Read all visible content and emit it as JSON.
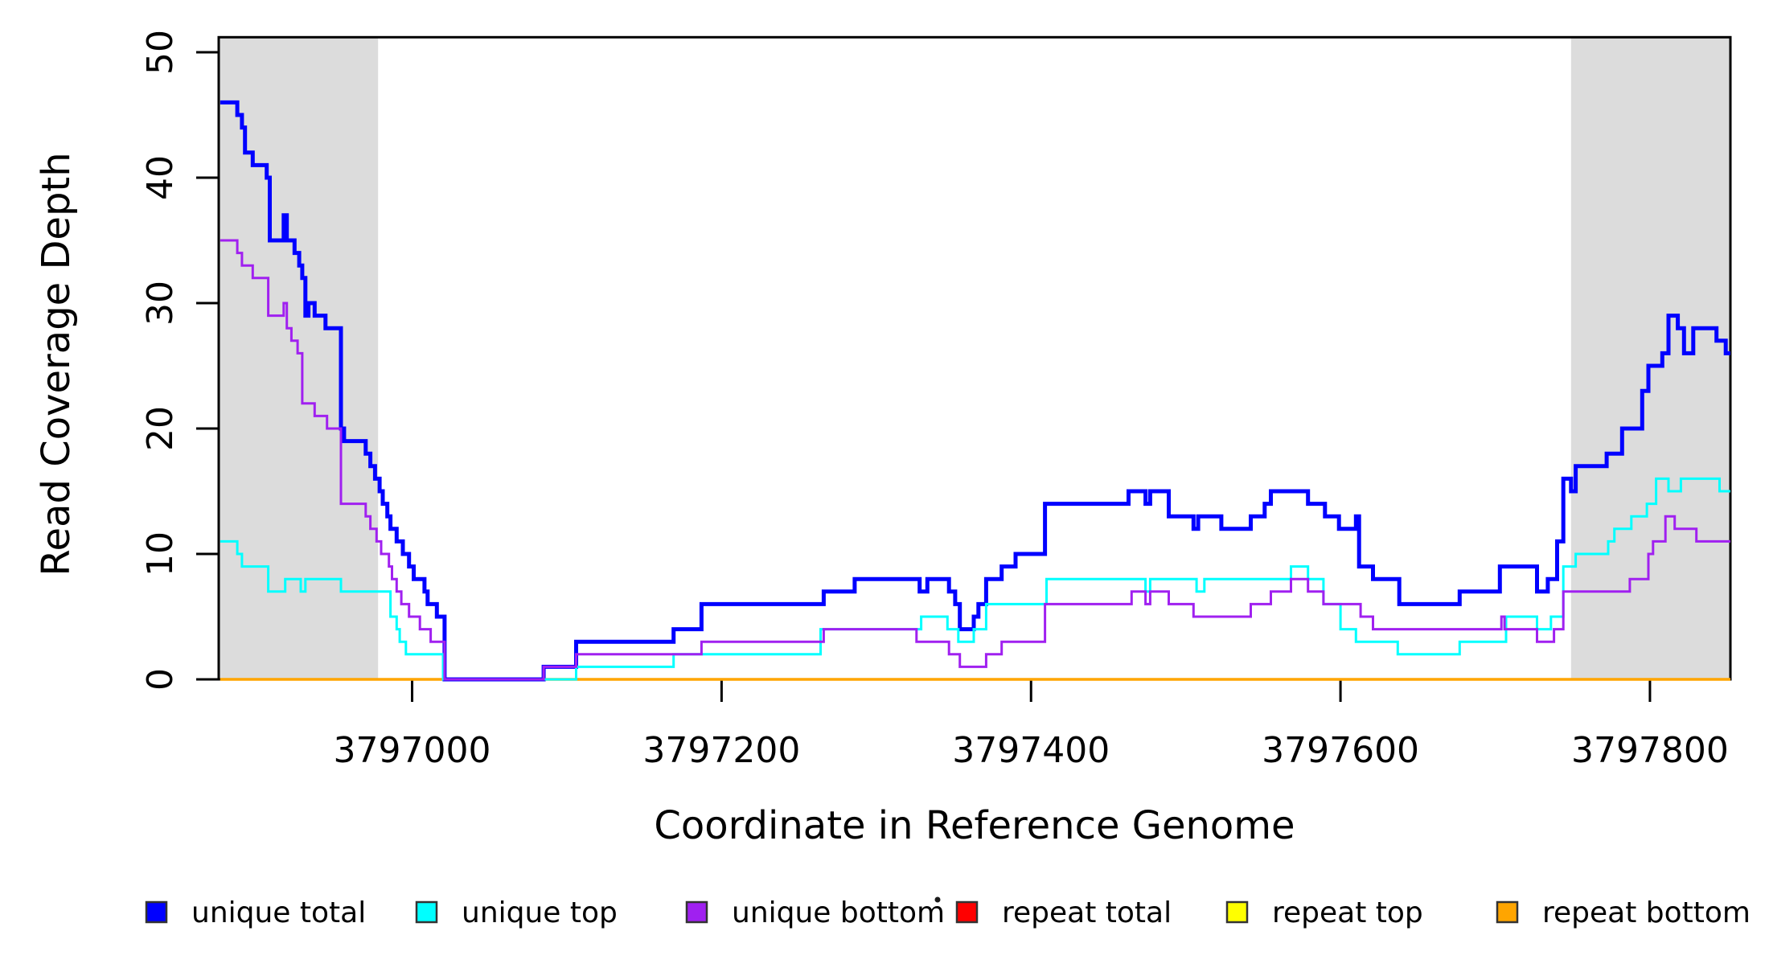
{
  "chart_data": {
    "type": "line",
    "subtype": "step",
    "title": "",
    "xlabel": "Coordinate in Reference Genome",
    "ylabel": "Read Coverage Depth",
    "xlim": [
      3796875,
      3797852
    ],
    "ylim": [
      0,
      51.2
    ],
    "grid": false,
    "background_color": "#ffffff",
    "axis_color": "#000000",
    "shaded_color": "#DCDCDC",
    "shaded_regions": [
      {
        "x_start": 3796875,
        "x_end": 3796978
      },
      {
        "x_start": 3797749,
        "x_end": 3797852
      }
    ],
    "x_ticks": {
      "values": [
        3797000,
        3797200,
        3797400,
        3797600,
        3797800
      ],
      "labels": [
        "3797000",
        "3797200",
        "3797400",
        "3797600",
        "3797800"
      ]
    },
    "y_ticks": {
      "values": [
        0,
        10,
        20,
        30,
        40,
        50
      ],
      "labels": [
        "0",
        "10",
        "20",
        "30",
        "40",
        "50"
      ]
    },
    "legend": {
      "position": "bottom",
      "entries": [
        {
          "label": "unique total",
          "color": "#0000FF"
        },
        {
          "label": "unique top",
          "color": "#00FFFF"
        },
        {
          "label": "unique bottom",
          "color": "#A020F0"
        },
        {
          "label": "repeat total",
          "color": "#FF0000"
        },
        {
          "label": "repeat top",
          "color": "#FFFF00"
        },
        {
          "label": "repeat bottom",
          "color": "#FFA500"
        }
      ]
    },
    "series": [
      {
        "name": "repeat total",
        "color": "#FF0000",
        "line_width": 3,
        "points": [
          [
            3796876,
            0
          ]
        ]
      },
      {
        "name": "repeat top",
        "color": "#FFFF00",
        "line_width": 3,
        "points": [
          [
            3796876,
            0
          ]
        ]
      },
      {
        "name": "repeat bottom",
        "color": "#FFA500",
        "line_width": 3.5,
        "points": [
          [
            3796876,
            0
          ]
        ]
      },
      {
        "name": "unique total",
        "color": "#0000FF",
        "line_width": 5,
        "points": [
          [
            3796876,
            46
          ],
          [
            3796887,
            45
          ],
          [
            3796890,
            44
          ],
          [
            3796892,
            42
          ],
          [
            3796897,
            41
          ],
          [
            3796906,
            40
          ],
          [
            3796908,
            35
          ],
          [
            3796917,
            37
          ],
          [
            3796919,
            35
          ],
          [
            3796924,
            34
          ],
          [
            3796927,
            33
          ],
          [
            3796929,
            32
          ],
          [
            3796931,
            29
          ],
          [
            3796933,
            30
          ],
          [
            3796937,
            29
          ],
          [
            3796944,
            28
          ],
          [
            3796954,
            20
          ],
          [
            3796956,
            19
          ],
          [
            3796970,
            18
          ],
          [
            3796973,
            17
          ],
          [
            3796976,
            16
          ],
          [
            3796979,
            15
          ],
          [
            3796981,
            14
          ],
          [
            3796984,
            13
          ],
          [
            3796986,
            12
          ],
          [
            3796990,
            11
          ],
          [
            3796994,
            10
          ],
          [
            3796998,
            9
          ],
          [
            3797001,
            8
          ],
          [
            3797008,
            7
          ],
          [
            3797010,
            6
          ],
          [
            3797016,
            5
          ],
          [
            3797021,
            0
          ],
          [
            3797085,
            1
          ],
          [
            3797106,
            3
          ],
          [
            3797169,
            4
          ],
          [
            3797187,
            6
          ],
          [
            3797266,
            7
          ],
          [
            3797286,
            8
          ],
          [
            3797328,
            7
          ],
          [
            3797333,
            8
          ],
          [
            3797347,
            7
          ],
          [
            3797351,
            6
          ],
          [
            3797354,
            4
          ],
          [
            3797363,
            5
          ],
          [
            3797366,
            6
          ],
          [
            3797371,
            8
          ],
          [
            3797381,
            9
          ],
          [
            3797390,
            10
          ],
          [
            3797409,
            14
          ],
          [
            3797463,
            15
          ],
          [
            3797474,
            14
          ],
          [
            3797477,
            15
          ],
          [
            3797489,
            13
          ],
          [
            3797505,
            12
          ],
          [
            3797508,
            13
          ],
          [
            3797523,
            12
          ],
          [
            3797542,
            13
          ],
          [
            3797551,
            14
          ],
          [
            3797555,
            15
          ],
          [
            3797579,
            14
          ],
          [
            3797590,
            13
          ],
          [
            3797599,
            12
          ],
          [
            3797610,
            13
          ],
          [
            3797612,
            9
          ],
          [
            3797621,
            8
          ],
          [
            3797638,
            6
          ],
          [
            3797677,
            7
          ],
          [
            3797703,
            9
          ],
          [
            3797727,
            7
          ],
          [
            3797734,
            8
          ],
          [
            3797740,
            11
          ],
          [
            3797744,
            16
          ],
          [
            3797749,
            15
          ],
          [
            3797752,
            17
          ],
          [
            3797772,
            18
          ],
          [
            3797782,
            20
          ],
          [
            3797795,
            23
          ],
          [
            3797799,
            25
          ],
          [
            3797808,
            26
          ],
          [
            3797812,
            29
          ],
          [
            3797818,
            28
          ],
          [
            3797822,
            26
          ],
          [
            3797828,
            28
          ],
          [
            3797843,
            27
          ],
          [
            3797849,
            26
          ]
        ]
      },
      {
        "name": "unique top",
        "color": "#00FFFF",
        "line_width": 3,
        "points": [
          [
            3796876,
            11
          ],
          [
            3796887,
            10
          ],
          [
            3796890,
            9
          ],
          [
            3796907,
            7
          ],
          [
            3796918,
            8
          ],
          [
            3796928,
            7
          ],
          [
            3796931,
            8
          ],
          [
            3796954,
            7
          ],
          [
            3796986,
            5
          ],
          [
            3796990,
            4
          ],
          [
            3796992,
            3
          ],
          [
            3796996,
            2
          ],
          [
            3797020,
            0
          ],
          [
            3797106,
            1
          ],
          [
            3797169,
            2
          ],
          [
            3797264,
            4
          ],
          [
            3797329,
            5
          ],
          [
            3797346,
            4
          ],
          [
            3797353,
            3
          ],
          [
            3797363,
            4
          ],
          [
            3797371,
            6
          ],
          [
            3797410,
            8
          ],
          [
            3797474,
            7
          ],
          [
            3797477,
            8
          ],
          [
            3797507,
            7
          ],
          [
            3797512,
            8
          ],
          [
            3797568,
            9
          ],
          [
            3797579,
            8
          ],
          [
            3797589,
            6
          ],
          [
            3797600,
            4
          ],
          [
            3797610,
            3
          ],
          [
            3797637,
            2
          ],
          [
            3797677,
            3
          ],
          [
            3797707,
            5
          ],
          [
            3797727,
            4
          ],
          [
            3797736,
            5
          ],
          [
            3797744,
            9
          ],
          [
            3797752,
            10
          ],
          [
            3797773,
            11
          ],
          [
            3797777,
            12
          ],
          [
            3797788,
            13
          ],
          [
            3797798,
            14
          ],
          [
            3797804,
            16
          ],
          [
            3797812,
            15
          ],
          [
            3797820,
            16
          ],
          [
            3797845,
            15
          ]
        ]
      },
      {
        "name": "unique bottom",
        "color": "#A020F0",
        "line_width": 3,
        "points": [
          [
            3796876,
            35
          ],
          [
            3796887,
            34
          ],
          [
            3796890,
            33
          ],
          [
            3796897,
            32
          ],
          [
            3796907,
            29
          ],
          [
            3796917,
            30
          ],
          [
            3796919,
            28
          ],
          [
            3796922,
            27
          ],
          [
            3796926,
            26
          ],
          [
            3796929,
            22
          ],
          [
            3796937,
            21
          ],
          [
            3796945,
            20
          ],
          [
            3796954,
            14
          ],
          [
            3796970,
            13
          ],
          [
            3796973,
            12
          ],
          [
            3796977,
            11
          ],
          [
            3796980,
            10
          ],
          [
            3796985,
            9
          ],
          [
            3796987,
            8
          ],
          [
            3796990,
            7
          ],
          [
            3796993,
            6
          ],
          [
            3796998,
            5
          ],
          [
            3797005,
            4
          ],
          [
            3797012,
            3
          ],
          [
            3797021,
            0
          ],
          [
            3797085,
            1
          ],
          [
            3797106,
            2
          ],
          [
            3797187,
            3
          ],
          [
            3797266,
            4
          ],
          [
            3797326,
            3
          ],
          [
            3797347,
            2
          ],
          [
            3797354,
            1
          ],
          [
            3797371,
            2
          ],
          [
            3797381,
            3
          ],
          [
            3797409,
            6
          ],
          [
            3797465,
            7
          ],
          [
            3797474,
            6
          ],
          [
            3797477,
            7
          ],
          [
            3797489,
            6
          ],
          [
            3797505,
            5
          ],
          [
            3797542,
            6
          ],
          [
            3797555,
            7
          ],
          [
            3797568,
            8
          ],
          [
            3797579,
            7
          ],
          [
            3797589,
            6
          ],
          [
            3797613,
            5
          ],
          [
            3797621,
            4
          ],
          [
            3797704,
            5
          ],
          [
            3797706,
            4
          ],
          [
            3797727,
            3
          ],
          [
            3797738,
            4
          ],
          [
            3797744,
            7
          ],
          [
            3797787,
            8
          ],
          [
            3797799,
            10
          ],
          [
            3797802,
            11
          ],
          [
            3797810,
            13
          ],
          [
            3797816,
            12
          ],
          [
            3797830,
            11
          ]
        ]
      }
    ]
  }
}
